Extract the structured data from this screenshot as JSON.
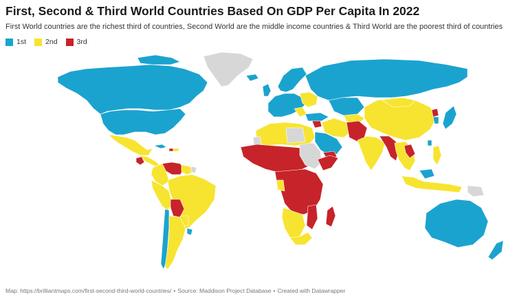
{
  "header": {
    "title": "First, Second & Third World Countries Based On GDP Per Capita In 2022",
    "subtitle": "First World countries are the richest third of countries, Second World are the middle income countries & Third World are the poorest third of countries"
  },
  "legend": [
    {
      "label": "1st",
      "color": "#1ba3cf"
    },
    {
      "label": "2nd",
      "color": "#f7e430"
    },
    {
      "label": "3rd",
      "color": "#c7232a"
    }
  ],
  "colors": {
    "first": "#1ba3cf",
    "second": "#f7e430",
    "third": "#c7232a",
    "nodata": "#d7d7d7",
    "border": "#ffffff"
  },
  "footer": {
    "map_credit": "Map: https://brilliantmaps.com/first-second-third-world-countries/",
    "source": "Source: Maddison Project Database",
    "created": "Created with Datawrapper",
    "separator": "•"
  }
}
